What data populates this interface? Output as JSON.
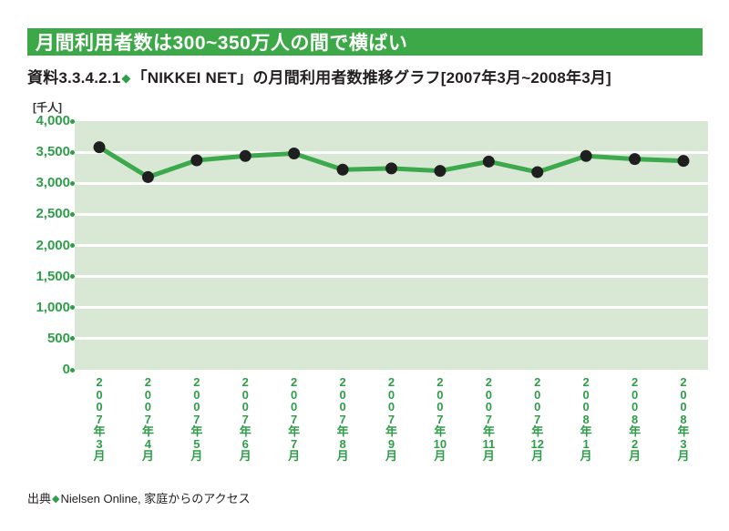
{
  "header": {
    "title": "月間利用者数は300~350万人の間で横ばい",
    "bg": "#3da848",
    "text_color": "#ffffff"
  },
  "subtitle": {
    "prefix": "資料3.3.4.2.1",
    "diamond": "◆",
    "text": "「NIKKEI NET」の月間利用者数推移グラフ[2007年3月~2008年3月]"
  },
  "source": {
    "prefix": "出典",
    "diamond": "◆",
    "text": "Nielsen Online, 家庭からのアクセス"
  },
  "chart_data": {
    "type": "line",
    "title": "「NIKKEI NET」の月間利用者数推移グラフ",
    "unit_label": "[千人]",
    "categories": [
      "2007年3月",
      "2007年4月",
      "2007年5月",
      "2007年6月",
      "2007年7月",
      "2007年8月",
      "2007年9月",
      "2007年10月",
      "2007年11月",
      "2007年12月",
      "2008年1月",
      "2008年2月",
      "2008年3月"
    ],
    "values": [
      3580,
      3100,
      3370,
      3440,
      3480,
      3220,
      3240,
      3200,
      3350,
      3180,
      3440,
      3390,
      3360
    ],
    "ylim": [
      0,
      4000
    ],
    "ytick_step": 500,
    "ytick_labels": [
      "4,000",
      "3,500",
      "3,000",
      "2,500",
      "2,000",
      "1,500",
      "1,000",
      "500",
      "0"
    ],
    "grid": true,
    "legend": "none",
    "colors": {
      "line": "#3caa4c",
      "marker": "#1f1f1f",
      "plot_bg": "#d9e8d4",
      "axis_label": "#2f9e48",
      "gridline": "#ffffff"
    }
  }
}
